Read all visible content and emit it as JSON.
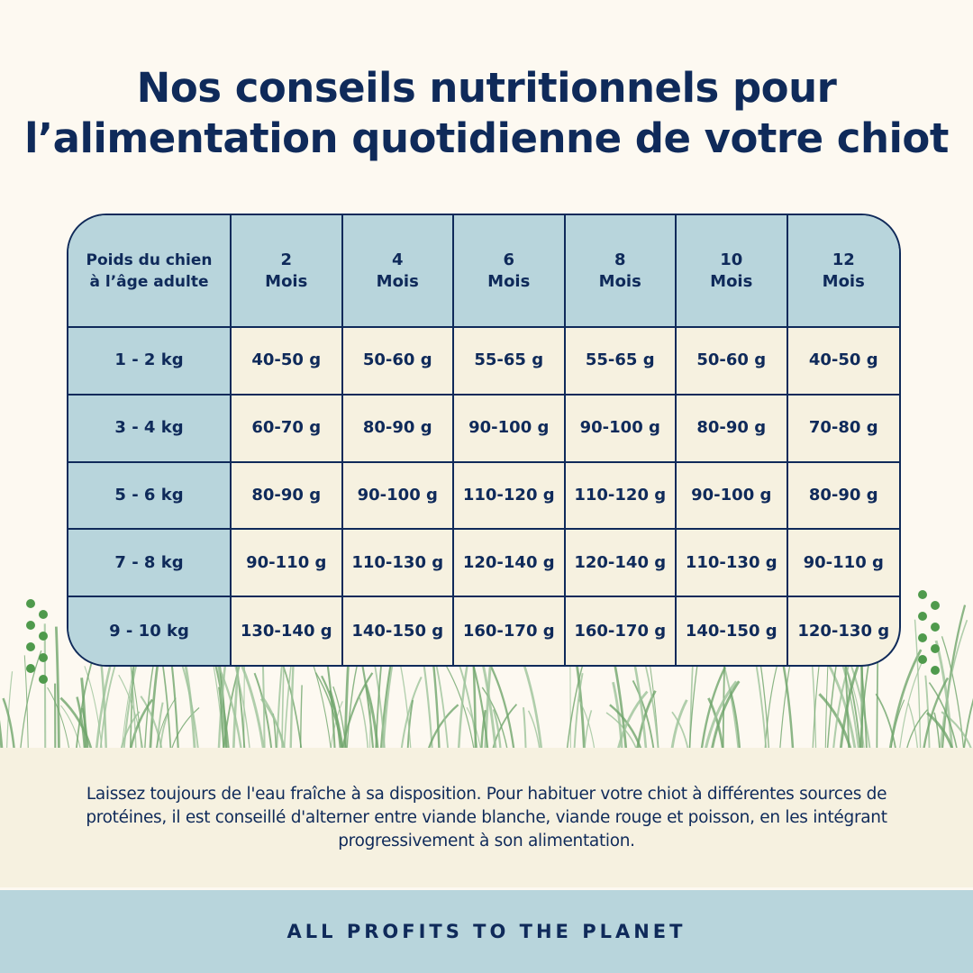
{
  "title": {
    "line1": "Nos conseils nutritionnels pour",
    "line2": "l’alimentation quotidienne de votre chiot"
  },
  "table": {
    "corner_header": "Poids du chien à l’âge adulte",
    "columns": [
      {
        "number": "2",
        "unit": "Mois"
      },
      {
        "number": "4",
        "unit": "Mois"
      },
      {
        "number": "6",
        "unit": "Mois"
      },
      {
        "number": "8",
        "unit": "Mois"
      },
      {
        "number": "10",
        "unit": "Mois"
      },
      {
        "number": "12",
        "unit": "Mois"
      }
    ],
    "rows": [
      {
        "weight": "1 - 2 kg",
        "values": [
          "40-50 g",
          "50-60 g",
          "55-65 g",
          "55-65 g",
          "50-60 g",
          "40-50 g"
        ]
      },
      {
        "weight": "3 - 4 kg",
        "values": [
          "60-70 g",
          "80-90 g",
          "90-100 g",
          "90-100 g",
          "80-90 g",
          "70-80 g"
        ]
      },
      {
        "weight": "5 - 6 kg",
        "values": [
          "80-90 g",
          "90-100 g",
          "110-120 g",
          "110-120 g",
          "90-100 g",
          "80-90 g"
        ]
      },
      {
        "weight": "7 - 8 kg",
        "values": [
          "90-110 g",
          "110-130 g",
          "120-140 g",
          "120-140 g",
          "110-130 g",
          "90-110 g"
        ]
      },
      {
        "weight": "9 - 10 kg",
        "values": [
          "130-140 g",
          "140-150 g",
          "160-170 g",
          "160-170 g",
          "140-150 g",
          "120-130 g"
        ]
      }
    ]
  },
  "note": "Laissez toujours de l'eau fraîche à sa disposition. Pour habituer votre chiot à différentes sources de protéines, il est conseillé d'alterner entre viande blanche, viande rouge et poisson, en les intégrant progressivement à son alimentation.",
  "footer": "ALL PROFITS TO THE PLANET",
  "colors": {
    "navy": "#0f2a5a",
    "blue": "#b8d5dc",
    "cream": "#f6f1e0",
    "background": "#fdf9f1",
    "grass": "#5c9a5a"
  }
}
